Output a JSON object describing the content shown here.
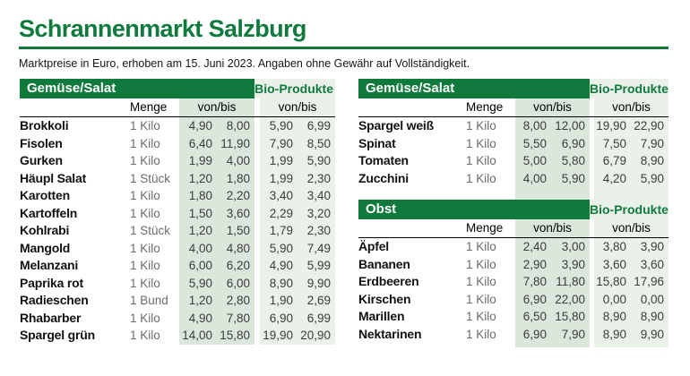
{
  "page": {
    "title": "Schrannenmarkt Salzburg",
    "subtitle": "Marktpreise in Euro, erhoben am 15. Juni 2023. Angaben ohne Gewähr auf Vollständigkeit."
  },
  "colors": {
    "brand_green": "#107a3d",
    "price_column_bg": "#dbe7db",
    "bio_column_bg": "#eaf1e9"
  },
  "labels": {
    "menge": "Menge",
    "von_bis": "von/bis",
    "bio": "Bio-Produkte"
  },
  "tables": [
    {
      "category": "Gemüse/Salat",
      "rows": [
        {
          "name": "Brokkoli",
          "menge": "1 Kilo",
          "von": "4,90",
          "bis": "8,00",
          "bio_von": "5,90",
          "bio_bis": "6,99"
        },
        {
          "name": "Fisolen",
          "menge": "1 Kilo",
          "von": "6,40",
          "bis": "11,90",
          "bio_von": "7,90",
          "bio_bis": "8,50"
        },
        {
          "name": "Gurken",
          "menge": "1 Kilo",
          "von": "1,99",
          "bis": "4,00",
          "bio_von": "1,99",
          "bio_bis": "5,90"
        },
        {
          "name": "Häupl Salat",
          "menge": "1 Stück",
          "von": "1,20",
          "bis": "1,80",
          "bio_von": "1,99",
          "bio_bis": "2,30"
        },
        {
          "name": "Karotten",
          "menge": "1 Kilo",
          "von": "1,80",
          "bis": "2,20",
          "bio_von": "3,40",
          "bio_bis": "3,40"
        },
        {
          "name": "Kartoffeln",
          "menge": "1 Kilo",
          "von": "1,50",
          "bis": "3,60",
          "bio_von": "2,29",
          "bio_bis": "3,20"
        },
        {
          "name": "Kohlrabi",
          "menge": "1 Stück",
          "von": "1,20",
          "bis": "1,50",
          "bio_von": "1,79",
          "bio_bis": "2,30"
        },
        {
          "name": "Mangold",
          "menge": "1 Kilo",
          "von": "4,00",
          "bis": "4,80",
          "bio_von": "5,90",
          "bio_bis": "7,49"
        },
        {
          "name": "Melanzani",
          "menge": "1 Kilo",
          "von": "6,00",
          "bis": "6,20",
          "bio_von": "4,90",
          "bio_bis": "5,99"
        },
        {
          "name": "Paprika rot",
          "menge": "1 Kilo",
          "von": "5,90",
          "bis": "6,00",
          "bio_von": "8,90",
          "bio_bis": "9,90"
        },
        {
          "name": "Radieschen",
          "menge": "1 Bund",
          "von": "1,20",
          "bis": "2,80",
          "bio_von": "1,90",
          "bio_bis": "2,69"
        },
        {
          "name": "Rhabarber",
          "menge": "1 Kilo",
          "von": "4,90",
          "bis": "7,80",
          "bio_von": "6,90",
          "bio_bis": "6,99"
        },
        {
          "name": "Spargel grün",
          "menge": "1 Kilo",
          "von": "14,00",
          "bis": "15,80",
          "bio_von": "19,90",
          "bio_bis": "20,90"
        }
      ]
    },
    {
      "category": "Gemüse/Salat",
      "rows": [
        {
          "name": "Spargel weiß",
          "menge": "1 Kilo",
          "von": "8,00",
          "bis": "12,00",
          "bio_von": "19,90",
          "bio_bis": "22,90"
        },
        {
          "name": "Spinat",
          "menge": "1 Kilo",
          "von": "5,50",
          "bis": "6,90",
          "bio_von": "7,50",
          "bio_bis": "7,90"
        },
        {
          "name": "Tomaten",
          "menge": "1 Kilo",
          "von": "5,00",
          "bis": "5,80",
          "bio_von": "6,79",
          "bio_bis": "8,90"
        },
        {
          "name": "Zucchini",
          "menge": "1 Kilo",
          "von": "4,00",
          "bis": "5,90",
          "bio_von": "4,20",
          "bio_bis": "5,90"
        }
      ]
    },
    {
      "category": "Obst",
      "rows": [
        {
          "name": "Äpfel",
          "menge": "1 Kilo",
          "von": "2,40",
          "bis": "3,00",
          "bio_von": "3,80",
          "bio_bis": "3,90"
        },
        {
          "name": "Bananen",
          "menge": "1 Kilo",
          "von": "2,90",
          "bis": "3,90",
          "bio_von": "3,60",
          "bio_bis": "3,60"
        },
        {
          "name": "Erdbeeren",
          "menge": "1 Kilo",
          "von": "7,80",
          "bis": "11,80",
          "bio_von": "15,80",
          "bio_bis": "17,96"
        },
        {
          "name": "Kirschen",
          "menge": "1 Kilo",
          "von": "6,90",
          "bis": "22,00",
          "bio_von": "0,00",
          "bio_bis": "0,00"
        },
        {
          "name": "Marillen",
          "menge": "1 Kilo",
          "von": "6,50",
          "bis": "15,80",
          "bio_von": "8,90",
          "bio_bis": "8,90"
        },
        {
          "name": "Nektarinen",
          "menge": "1 Kilo",
          "von": "6,90",
          "bis": "7,90",
          "bio_von": "8,90",
          "bio_bis": "9,90"
        }
      ]
    }
  ]
}
